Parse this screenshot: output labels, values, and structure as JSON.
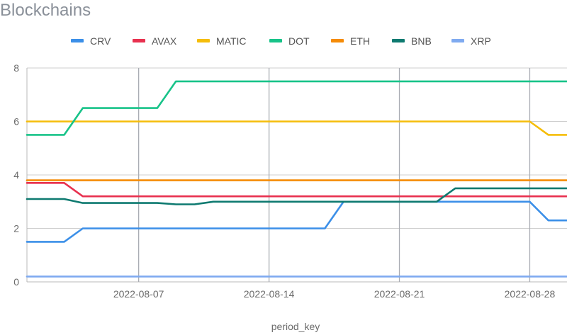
{
  "chart_data": {
    "type": "line",
    "title": "Blockchains",
    "xlabel": "period_key",
    "ylabel": "",
    "ylim": [
      0,
      8
    ],
    "yticks": [
      "0",
      "2",
      "4",
      "6",
      "8"
    ],
    "xlim": [
      "2022-08-01",
      "2022-08-30"
    ],
    "xticks": [
      "2022-08-07",
      "2022-08-14",
      "2022-08-21",
      "2022-08-28"
    ],
    "grid": true,
    "legend_position": "top",
    "x": [
      "2022-08-01",
      "2022-08-02",
      "2022-08-03",
      "2022-08-04",
      "2022-08-05",
      "2022-08-06",
      "2022-08-07",
      "2022-08-08",
      "2022-08-09",
      "2022-08-10",
      "2022-08-11",
      "2022-08-12",
      "2022-08-13",
      "2022-08-14",
      "2022-08-15",
      "2022-08-16",
      "2022-08-17",
      "2022-08-18",
      "2022-08-19",
      "2022-08-20",
      "2022-08-21",
      "2022-08-22",
      "2022-08-23",
      "2022-08-24",
      "2022-08-25",
      "2022-08-26",
      "2022-08-27",
      "2022-08-28",
      "2022-08-29",
      "2022-08-30"
    ],
    "series": [
      {
        "name": "CRV",
        "color": "#3b8fe8",
        "values": [
          1.5,
          1.5,
          1.5,
          2,
          2,
          2,
          2,
          2,
          2,
          2,
          2,
          2,
          2,
          2,
          2,
          2,
          2,
          3,
          3,
          3,
          3,
          3,
          3,
          3,
          3,
          3,
          3,
          3,
          2.3,
          2.3
        ]
      },
      {
        "name": "AVAX",
        "color": "#e8314f",
        "values": [
          3.7,
          3.7,
          3.7,
          3.2,
          3.2,
          3.2,
          3.2,
          3.2,
          3.2,
          3.2,
          3.2,
          3.2,
          3.2,
          3.2,
          3.2,
          3.2,
          3.2,
          3.2,
          3.2,
          3.2,
          3.2,
          3.2,
          3.2,
          3.2,
          3.2,
          3.2,
          3.2,
          3.2,
          3.2,
          3.2
        ]
      },
      {
        "name": "MATIC",
        "color": "#f5bd0a",
        "values": [
          6,
          6,
          6,
          6,
          6,
          6,
          6,
          6,
          6,
          6,
          6,
          6,
          6,
          6,
          6,
          6,
          6,
          6,
          6,
          6,
          6,
          6,
          6,
          6,
          6,
          6,
          6,
          6,
          5.5,
          5.5
        ]
      },
      {
        "name": "DOT",
        "color": "#18c389",
        "values": [
          5.5,
          5.5,
          5.5,
          6.5,
          6.5,
          6.5,
          6.5,
          6.5,
          7.5,
          7.5,
          7.5,
          7.5,
          7.5,
          7.5,
          7.5,
          7.5,
          7.5,
          7.5,
          7.5,
          7.5,
          7.5,
          7.5,
          7.5,
          7.5,
          7.5,
          7.5,
          7.5,
          7.5,
          7.5,
          7.5
        ]
      },
      {
        "name": "ETH",
        "color": "#f58b07",
        "values": [
          3.8,
          3.8,
          3.8,
          3.8,
          3.8,
          3.8,
          3.8,
          3.8,
          3.8,
          3.8,
          3.8,
          3.8,
          3.8,
          3.8,
          3.8,
          3.8,
          3.8,
          3.8,
          3.8,
          3.8,
          3.8,
          3.8,
          3.8,
          3.8,
          3.8,
          3.8,
          3.8,
          3.8,
          3.8,
          3.8
        ]
      },
      {
        "name": "BNB",
        "color": "#0e7a70",
        "values": [
          3.1,
          3.1,
          3.1,
          2.95,
          2.95,
          2.95,
          2.95,
          2.95,
          2.9,
          2.9,
          3,
          3,
          3,
          3,
          3,
          3,
          3,
          3,
          3,
          3,
          3,
          3,
          3,
          3.5,
          3.5,
          3.5,
          3.5,
          3.5,
          3.5,
          3.5
        ]
      },
      {
        "name": "XRP",
        "color": "#7faaf0",
        "values": [
          0.2,
          0.2,
          0.2,
          0.2,
          0.2,
          0.2,
          0.2,
          0.2,
          0.2,
          0.2,
          0.2,
          0.2,
          0.2,
          0.2,
          0.2,
          0.2,
          0.2,
          0.2,
          0.2,
          0.2,
          0.2,
          0.2,
          0.2,
          0.2,
          0.2,
          0.2,
          0.2,
          0.2,
          0.2,
          0.2
        ]
      }
    ]
  }
}
